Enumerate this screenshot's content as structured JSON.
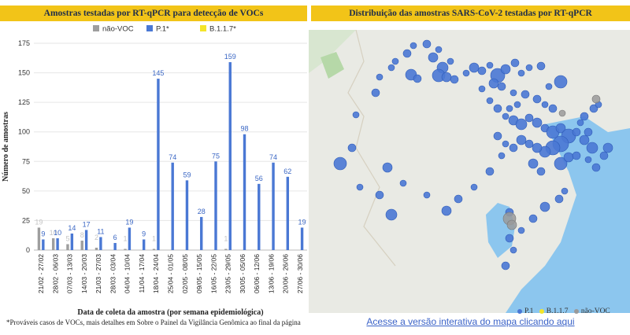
{
  "left_header": "Amostras testadas por RT-qPCR para detecção de VOCs",
  "right_header": "Distribuição das amostras SARS-CoV-2 testadas por RT-qPCR",
  "footnote": "*Prováveis casos de VOCs, mais detalhes em Sobre o Painel da Vigilância Genômica ao final da página",
  "map_link": "Acesse a versão interativa do mapa clicando aqui",
  "map_legend": [
    {
      "label": "P.1",
      "color": "#4a78d4"
    },
    {
      "label": "B.1.1.7",
      "color": "#f4e52a"
    },
    {
      "label": "não-VOC",
      "color": "#9a9a9a"
    }
  ],
  "chart_data": {
    "type": "bar",
    "title": "Amostras testadas por RT-qPCR para detecção de VOCs",
    "xlabel": "Data de coleta da amostra (por semana epidemiológica)",
    "ylabel": "Número de amostras",
    "ylim": [
      0,
      175
    ],
    "yticks": [
      0,
      25,
      50,
      75,
      100,
      125,
      150,
      175
    ],
    "grid": true,
    "legend_position": "top-center",
    "categories": [
      "21/02 - 27/02",
      "28/02 - 06/03",
      "07/03 - 13/03",
      "14/03 - 20/03",
      "21/03 - 27/03",
      "28/03 - 03/04",
      "04/04 - 10/04",
      "11/04 - 17/04",
      "18/04 - 24/04",
      "25/04 - 01/05",
      "02/05 - 08/05",
      "09/05 - 15/05",
      "16/05 - 22/05",
      "23/05 - 29/05",
      "30/05 - 05/06",
      "06/06 - 12/06",
      "13/06 - 19/06",
      "20/06 - 26/06",
      "27/06 - 30/06"
    ],
    "series": [
      {
        "name": "não-VOC",
        "color": "#9e9e9e",
        "values": [
          19,
          10,
          5,
          8,
          2,
          0,
          1,
          0,
          1,
          0,
          0,
          0,
          0,
          1,
          0,
          0,
          0,
          0,
          0
        ]
      },
      {
        "name": "P.1*",
        "color": "#4a78d4",
        "values": [
          9,
          10,
          14,
          17,
          11,
          6,
          19,
          9,
          145,
          74,
          59,
          28,
          75,
          159,
          98,
          56,
          74,
          62,
          19
        ]
      },
      {
        "name": "B.1.1.7*",
        "color": "#f4e52a",
        "values": [
          0,
          0,
          0,
          0,
          0,
          0,
          0,
          0,
          0,
          0,
          0,
          0,
          0,
          0,
          0,
          0,
          0,
          0,
          0
        ]
      }
    ]
  }
}
